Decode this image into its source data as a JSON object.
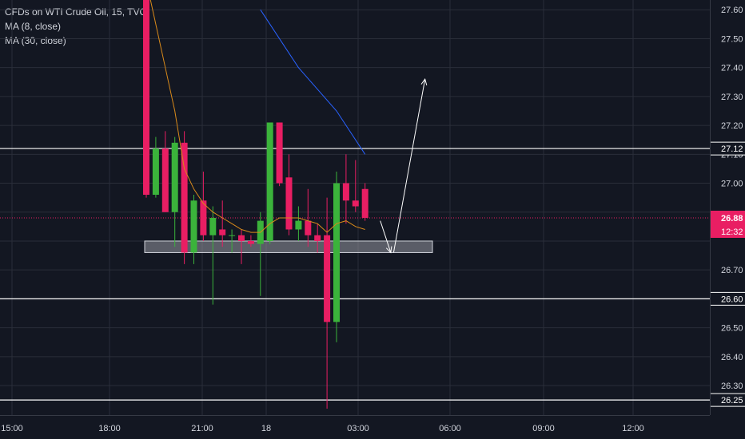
{
  "legend": {
    "symbol": "CFDs on WTI Crude Oil, 15, TVC",
    "ma8": "MA (8, close)",
    "ma30": "MA (30, close)"
  },
  "colors": {
    "background": "#131722",
    "grid": "#2a2e39",
    "up": "#26a69a",
    "up_green": "#3bb33b",
    "down": "#e91e63",
    "ma8": "#d98a1a",
    "ma30": "#2962ff",
    "axis_text": "#d1d4dc",
    "level": "#ffffff"
  },
  "chart_data": {
    "type": "candlestick",
    "symbol": "CFDs on WTI Crude Oil",
    "interval": "15",
    "source": "TVC",
    "y_ticks": [
      26.3,
      26.4,
      26.5,
      26.6,
      26.7,
      26.8,
      26.9,
      27.0,
      27.1,
      27.2,
      27.3,
      27.4,
      27.5,
      27.6
    ],
    "y_tick_labels": [
      "26.30",
      "26.40",
      "26.50",
      "26.60",
      "26.70",
      "",
      "",
      "27.00",
      "27.10",
      "27.20",
      "27.30",
      "27.40",
      "27.50",
      "27.60"
    ],
    "ylim": [
      26.22,
      27.62
    ],
    "x_ticks": [
      "15:00",
      "18:00",
      "21:00",
      "18",
      "03:00",
      "06:00",
      "09:00",
      "12:00"
    ],
    "horizontal_levels": [
      {
        "value": 27.12,
        "label": "27.12"
      },
      {
        "value": 26.6,
        "label": "26.60"
      },
      {
        "value": 26.25,
        "label": "26.25"
      }
    ],
    "current_price": {
      "value": 26.88,
      "label": "26.88",
      "countdown": "12:32"
    },
    "zone": {
      "low": 26.76,
      "high": 26.8
    },
    "candles": [
      {
        "i": 0,
        "o": 27.7,
        "h": 27.72,
        "l": 26.95,
        "c": 26.96
      },
      {
        "i": 1,
        "o": 26.96,
        "h": 27.16,
        "l": 26.95,
        "c": 27.12
      },
      {
        "i": 2,
        "o": 27.12,
        "h": 27.18,
        "l": 26.9,
        "c": 26.9
      },
      {
        "i": 3,
        "o": 26.9,
        "h": 27.16,
        "l": 26.78,
        "c": 27.14
      },
      {
        "i": 4,
        "o": 27.14,
        "h": 27.18,
        "l": 26.72,
        "c": 26.76
      },
      {
        "i": 5,
        "o": 26.76,
        "h": 26.96,
        "l": 26.72,
        "c": 26.94
      },
      {
        "i": 6,
        "o": 26.94,
        "h": 27.04,
        "l": 26.8,
        "c": 26.82
      },
      {
        "i": 7,
        "o": 26.82,
        "h": 26.92,
        "l": 26.58,
        "c": 26.88
      },
      {
        "i": 8,
        "o": 26.84,
        "h": 26.94,
        "l": 26.78,
        "c": 26.82
      },
      {
        "i": 9,
        "o": 26.82,
        "h": 26.84,
        "l": 26.76,
        "c": 26.82
      },
      {
        "i": 10,
        "o": 26.82,
        "h": 26.84,
        "l": 26.72,
        "c": 26.8
      },
      {
        "i": 11,
        "o": 26.8,
        "h": 26.82,
        "l": 26.78,
        "c": 26.79
      },
      {
        "i": 12,
        "o": 26.79,
        "h": 26.9,
        "l": 26.61,
        "c": 26.87
      },
      {
        "i": 13,
        "o": 26.8,
        "h": 27.21,
        "l": 26.79,
        "c": 27.21
      },
      {
        "i": 14,
        "o": 27.21,
        "h": 27.21,
        "l": 26.99,
        "c": 27.0
      },
      {
        "i": 15,
        "o": 27.02,
        "h": 27.1,
        "l": 26.82,
        "c": 26.84
      },
      {
        "i": 16,
        "o": 26.84,
        "h": 26.92,
        "l": 26.8,
        "c": 26.87
      },
      {
        "i": 17,
        "o": 26.87,
        "h": 26.98,
        "l": 26.78,
        "c": 26.82
      },
      {
        "i": 18,
        "o": 26.82,
        "h": 26.86,
        "l": 26.76,
        "c": 26.8
      },
      {
        "i": 19,
        "o": 26.82,
        "h": 26.95,
        "l": 26.22,
        "c": 26.52
      },
      {
        "i": 20,
        "o": 26.52,
        "h": 27.04,
        "l": 26.45,
        "c": 27.0
      },
      {
        "i": 21,
        "o": 27.0,
        "h": 27.1,
        "l": 26.86,
        "c": 26.94
      },
      {
        "i": 22,
        "o": 26.94,
        "h": 27.08,
        "l": 26.9,
        "c": 26.92
      },
      {
        "i": 23,
        "o": 26.98,
        "h": 27.0,
        "l": 26.87,
        "c": 26.88
      }
    ],
    "ma8": [
      [
        0,
        27.7
      ],
      [
        1,
        27.55
      ],
      [
        2,
        27.4
      ],
      [
        3,
        27.25
      ],
      [
        4,
        27.05
      ],
      [
        5,
        26.98
      ],
      [
        6,
        26.93
      ],
      [
        7,
        26.9
      ],
      [
        8,
        26.88
      ],
      [
        9,
        26.86
      ],
      [
        10,
        26.84
      ],
      [
        11,
        26.83
      ],
      [
        12,
        26.83
      ],
      [
        13,
        26.86
      ],
      [
        14,
        26.88
      ],
      [
        15,
        26.88
      ],
      [
        16,
        26.88
      ],
      [
        17,
        26.87
      ],
      [
        18,
        26.86
      ],
      [
        19,
        26.83
      ],
      [
        20,
        26.86
      ],
      [
        21,
        26.87
      ],
      [
        22,
        26.85
      ],
      [
        23,
        26.84
      ]
    ],
    "ma30": [
      [
        12,
        27.6
      ],
      [
        16,
        27.4
      ],
      [
        20,
        27.25
      ],
      [
        23,
        27.1
      ]
    ],
    "arrows": [
      {
        "from": [
          24.6,
          26.87
        ],
        "to": [
          25.7,
          26.76
        ]
      },
      {
        "from": [
          26.0,
          26.76
        ],
        "to": [
          29.3,
          27.36
        ]
      }
    ]
  }
}
